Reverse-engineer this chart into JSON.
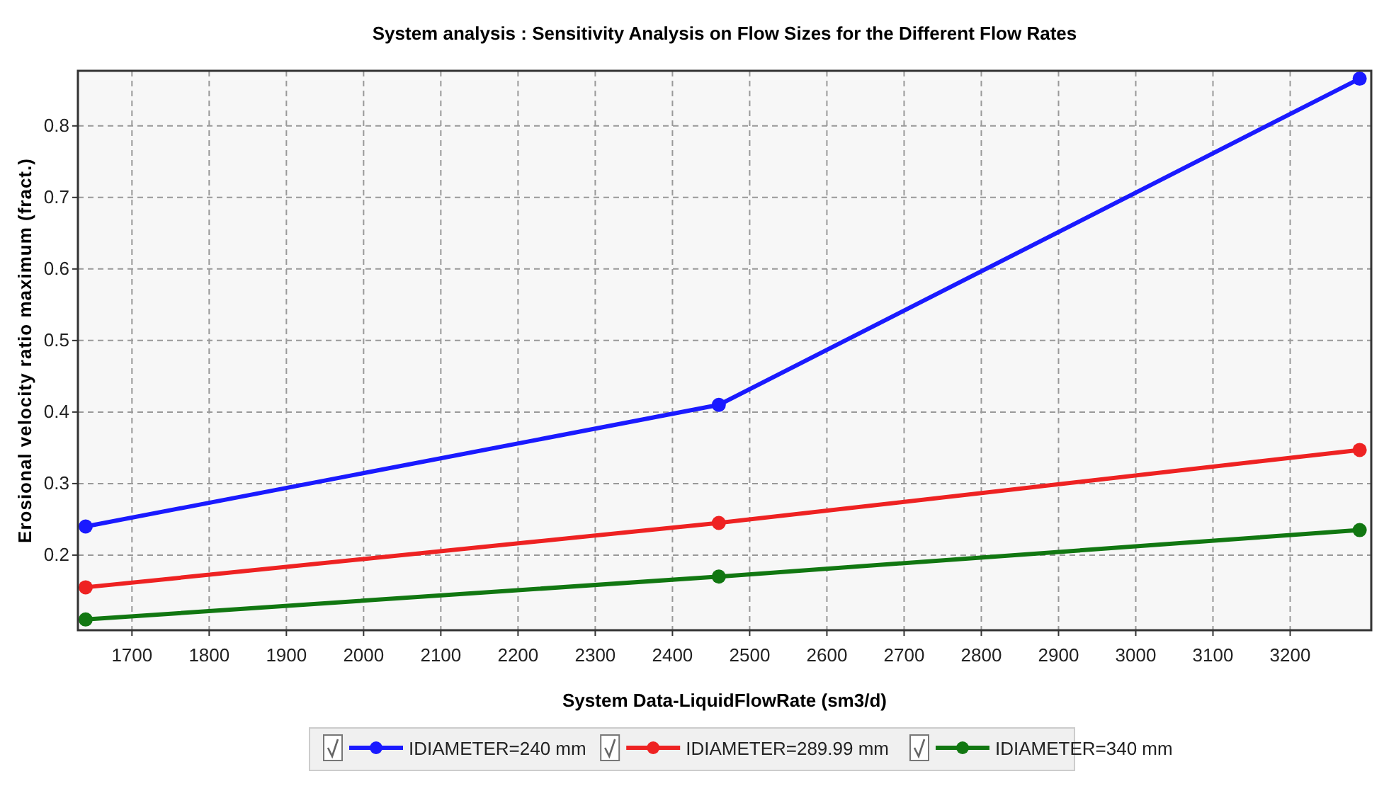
{
  "chart_data": {
    "type": "line",
    "title": "System analysis : Sensitivity Analysis on Flow Sizes for the Different Flow Rates",
    "xlabel": "System Data-LiquidFlowRate (sm3/d)",
    "ylabel": "Erosional velocity ratio maximum (fract.)",
    "x": [
      1640,
      2460,
      3290
    ],
    "series": [
      {
        "name": "IDIAMETER=240 mm",
        "color": "#1a1aff",
        "values": [
          0.24,
          0.41,
          0.866
        ]
      },
      {
        "name": "IDIAMETER=289.99 mm",
        "color": "#ee2222",
        "values": [
          0.155,
          0.245,
          0.347
        ]
      },
      {
        "name": "IDIAMETER=340 mm",
        "color": "#117711",
        "values": [
          0.11,
          0.17,
          0.235
        ]
      }
    ],
    "xlim": [
      1630,
      3305
    ],
    "xticks": [
      1700,
      1800,
      1900,
      2000,
      2100,
      2200,
      2300,
      2400,
      2500,
      2600,
      2700,
      2800,
      2900,
      3000,
      3100,
      3200
    ],
    "ylim": [
      0.095,
      0.877
    ],
    "yticks": [
      0.2,
      0.3,
      0.4,
      0.5,
      0.6,
      0.7,
      0.8
    ],
    "grid": true,
    "legend": "bottom",
    "marker": "circle",
    "line_style": "solid"
  }
}
